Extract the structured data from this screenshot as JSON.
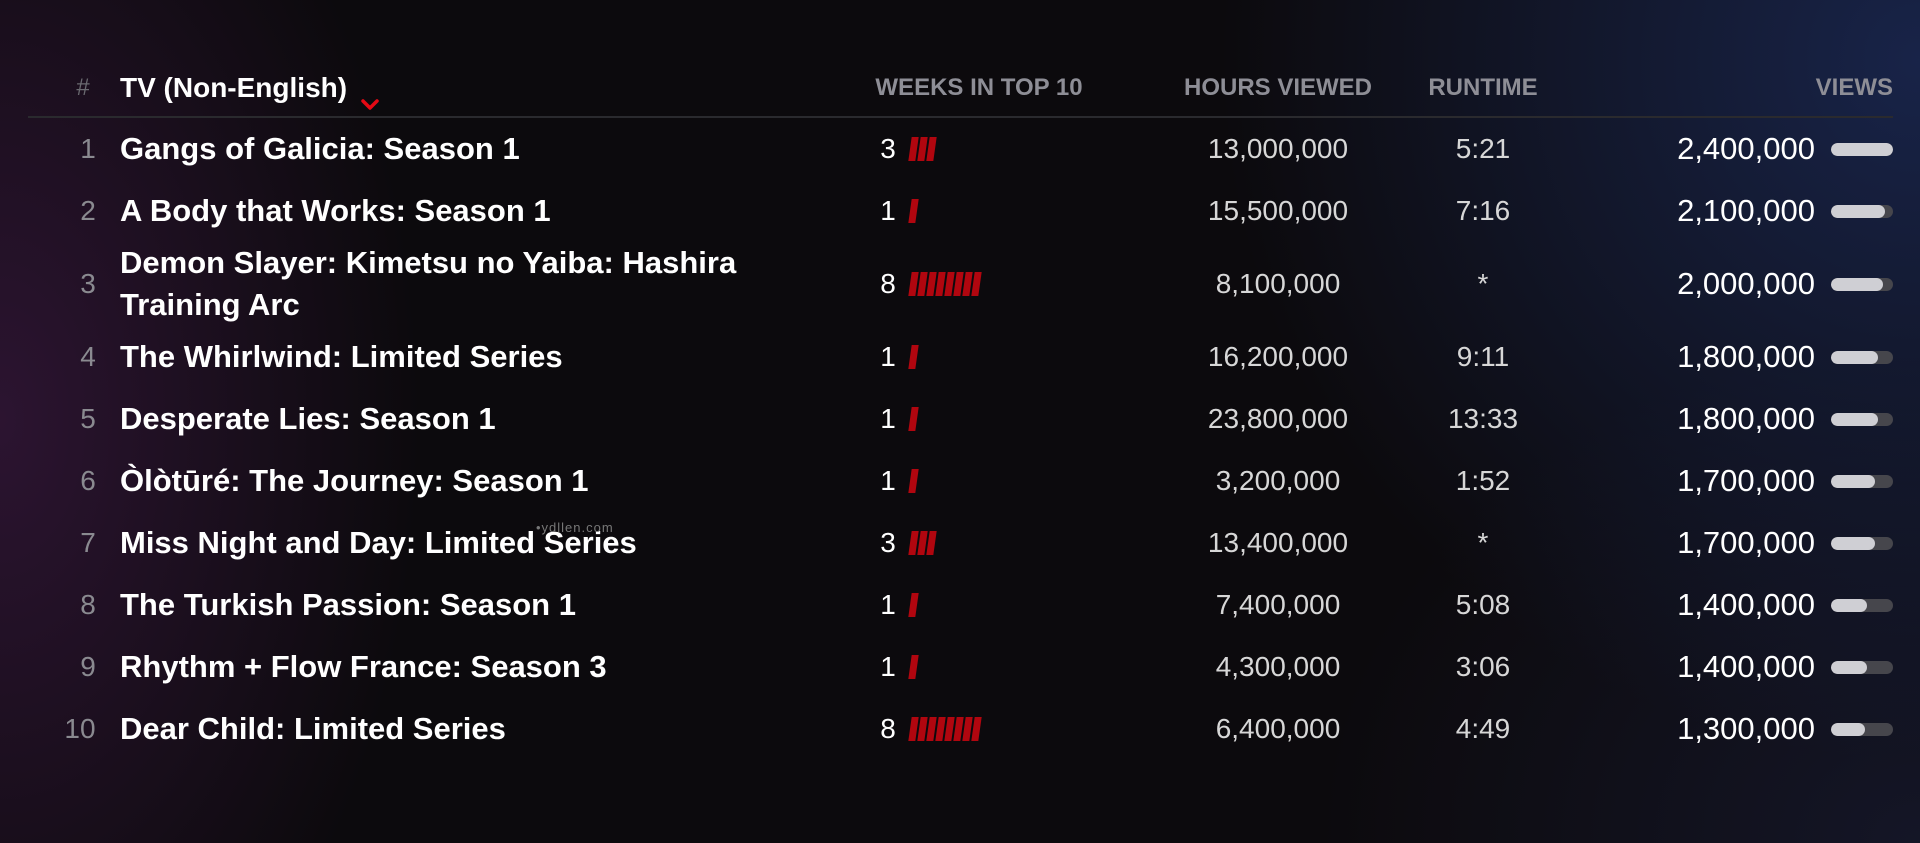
{
  "header": {
    "num_label": "#",
    "category_label": "TV (Non-English)",
    "weeks_label": "WEEKS IN TOP 10",
    "hours_label": "HOURS VIEWED",
    "runtime_label": "RUNTIME",
    "views_label": "VIEWS"
  },
  "colors": {
    "accent_red": "#b1060f",
    "header_text": "#8e8e96",
    "background": "#0c0a0d"
  },
  "watermark": "•ydllen.com",
  "rows": [
    {
      "rank": "1",
      "title": "Gangs of Galicia: Season 1",
      "weeks": "3",
      "weeks_value": 3,
      "hours": "13,000,000",
      "runtime": "5:21",
      "views": "2,400,000",
      "views_value": 2400000
    },
    {
      "rank": "2",
      "title": "A Body that Works: Season 1",
      "weeks": "1",
      "weeks_value": 1,
      "hours": "15,500,000",
      "runtime": "7:16",
      "views": "2,100,000",
      "views_value": 2100000
    },
    {
      "rank": "3",
      "title": "Demon Slayer: Kimetsu no Yaiba: Hashira Training Arc",
      "weeks": "8",
      "weeks_value": 8,
      "hours": "8,100,000",
      "runtime": "*",
      "views": "2,000,000",
      "views_value": 2000000
    },
    {
      "rank": "4",
      "title": "The Whirlwind: Limited Series",
      "weeks": "1",
      "weeks_value": 1,
      "hours": "16,200,000",
      "runtime": "9:11",
      "views": "1,800,000",
      "views_value": 1800000
    },
    {
      "rank": "5",
      "title": "Desperate Lies: Season 1",
      "weeks": "1",
      "weeks_value": 1,
      "hours": "23,800,000",
      "runtime": "13:33",
      "views": "1,800,000",
      "views_value": 1800000
    },
    {
      "rank": "6",
      "title": "Òlòtūré: The Journey: Season 1",
      "weeks": "1",
      "weeks_value": 1,
      "hours": "3,200,000",
      "runtime": "1:52",
      "views": "1,700,000",
      "views_value": 1700000
    },
    {
      "rank": "7",
      "title": "Miss Night and Day: Limited Series",
      "weeks": "3",
      "weeks_value": 3,
      "hours": "13,400,000",
      "runtime": "*",
      "views": "1,700,000",
      "views_value": 1700000
    },
    {
      "rank": "8",
      "title": "The Turkish Passion: Season 1",
      "weeks": "1",
      "weeks_value": 1,
      "hours": "7,400,000",
      "runtime": "5:08",
      "views": "1,400,000",
      "views_value": 1400000
    },
    {
      "rank": "9",
      "title": "Rhythm + Flow France: Season 3",
      "weeks": "1",
      "weeks_value": 1,
      "hours": "4,300,000",
      "runtime": "3:06",
      "views": "1,400,000",
      "views_value": 1400000
    },
    {
      "rank": "10",
      "title": "Dear Child: Limited Series",
      "weeks": "8",
      "weeks_value": 8,
      "hours": "6,400,000",
      "runtime": "4:49",
      "views": "1,300,000",
      "views_value": 1300000
    }
  ]
}
